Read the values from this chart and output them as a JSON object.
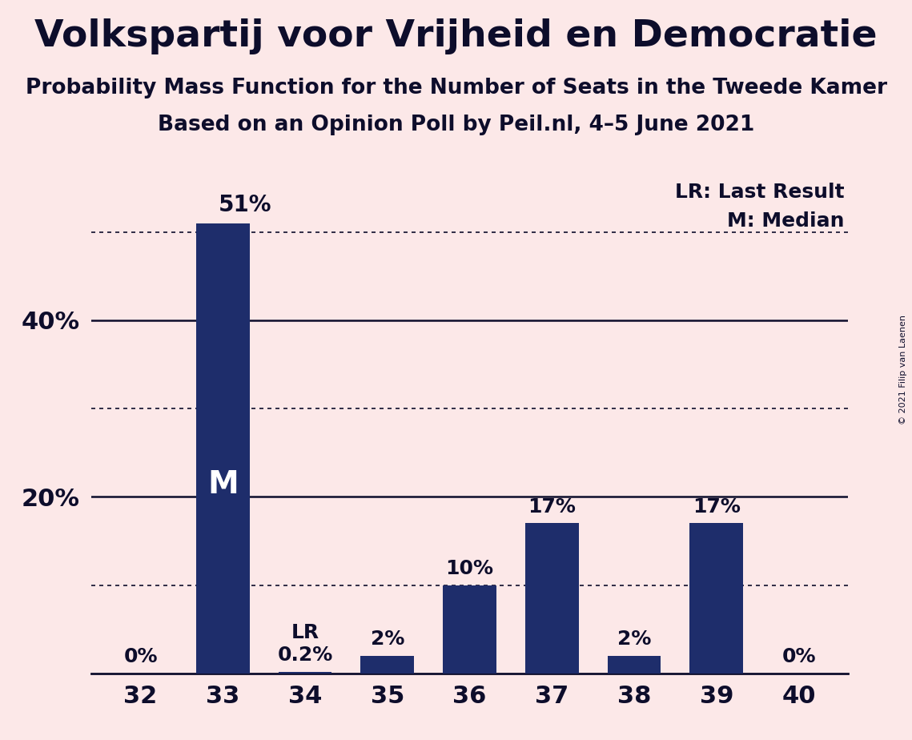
{
  "title": "Volkspartij voor Vrijheid en Democratie",
  "subtitle1": "Probability Mass Function for the Number of Seats in the Tweede Kamer",
  "subtitle2": "Based on an Opinion Poll by Peil.nl, 4–5 June 2021",
  "copyright": "© 2021 Filip van Laenen",
  "categories": [
    32,
    33,
    34,
    35,
    36,
    37,
    38,
    39,
    40
  ],
  "values": [
    0,
    51,
    0.2,
    2,
    10,
    17,
    2,
    17,
    0
  ],
  "bar_color": "#1e2d6b",
  "background_color": "#fce8e8",
  "ylim": [
    0,
    57
  ],
  "ytick_labeled": [
    20,
    40
  ],
  "ytick_dotted": [
    10,
    30,
    50
  ],
  "ytick_solid": [
    20,
    40
  ],
  "median_seat": 33,
  "lr_seat": 34,
  "bar_labels": [
    "0%",
    "51%",
    "LR\n0.2%",
    "2%",
    "10%",
    "17%",
    "2%",
    "17%",
    "0%"
  ],
  "title_fontsize": 34,
  "subtitle_fontsize": 19,
  "label_fontsize": 18,
  "tick_fontsize": 22,
  "legend_fontsize": 18,
  "m_fontsize": 28,
  "dark_color": "#0d0d2b"
}
